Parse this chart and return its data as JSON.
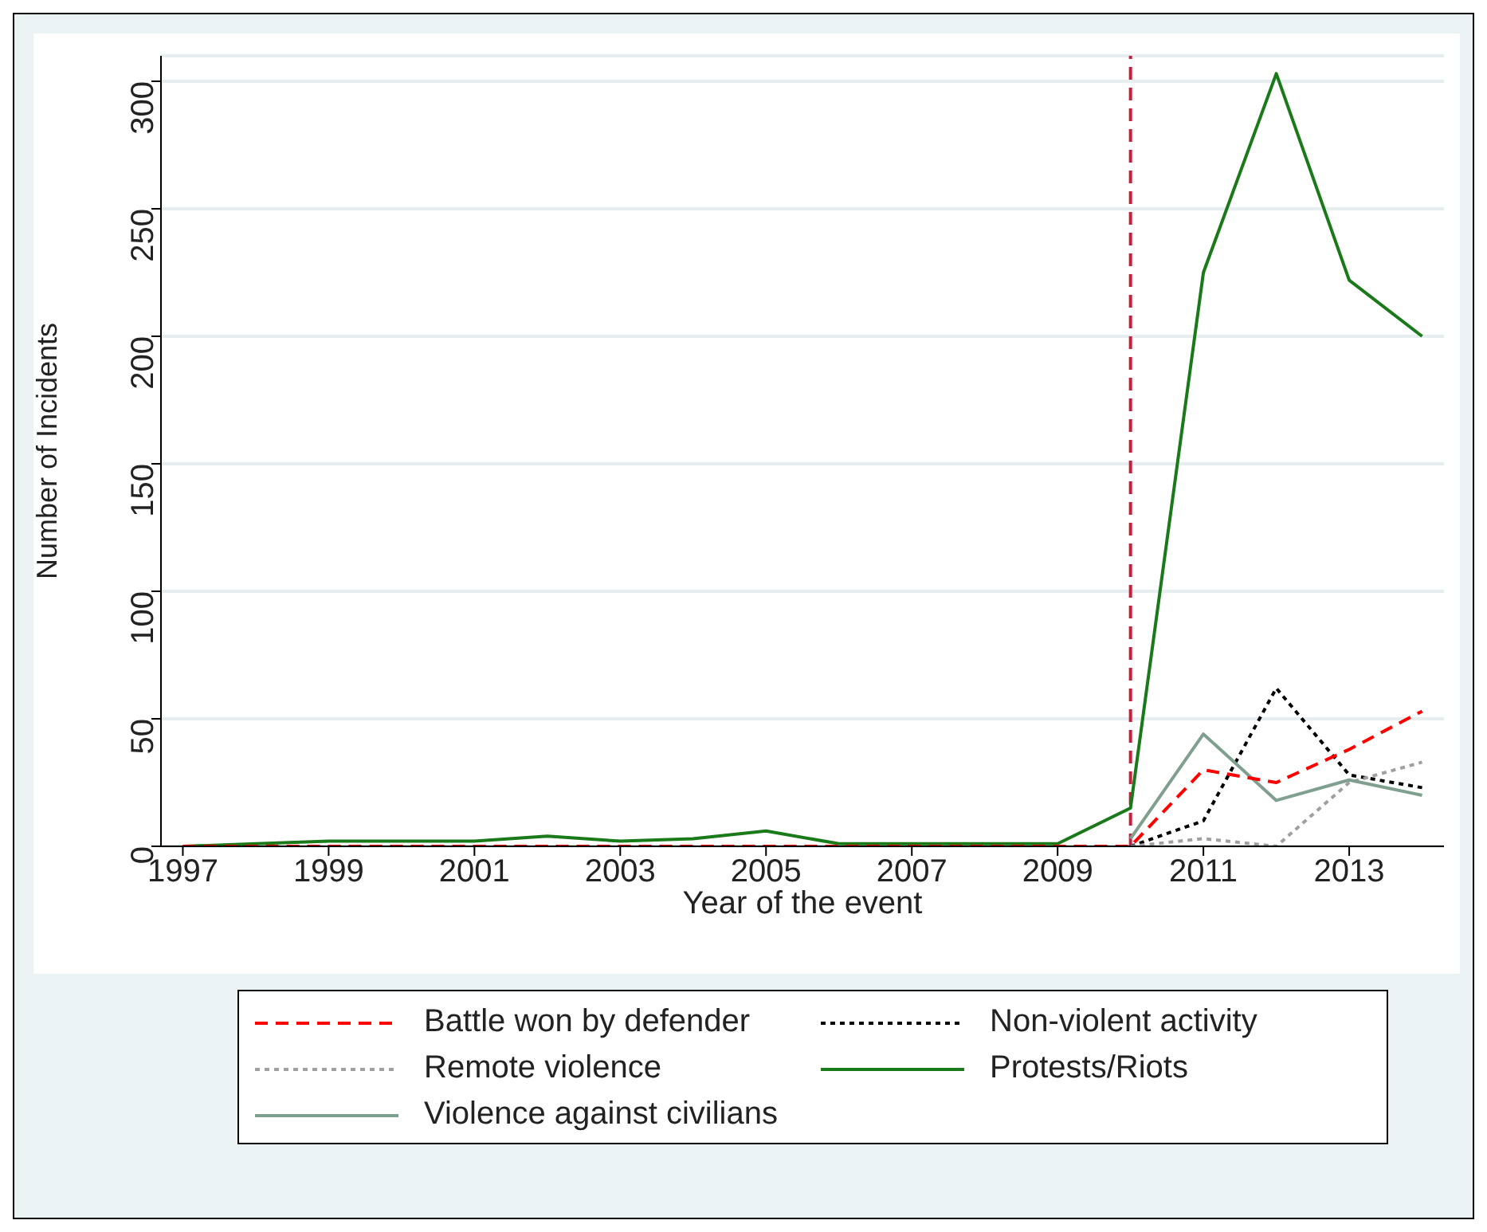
{
  "chart_data": {
    "type": "line",
    "xlabel": "Year of the event",
    "ylabel": "Number of Incidents",
    "x": [
      1997,
      1998,
      1999,
      2000,
      2001,
      2002,
      2003,
      2004,
      2005,
      2006,
      2007,
      2008,
      2009,
      2010,
      2011,
      2012,
      2013,
      2014
    ],
    "series": [
      {
        "name": "Battle won by defender",
        "color": "#ff0000",
        "line_style": "dashed",
        "values": [
          0,
          0,
          0,
          0,
          0,
          0,
          0,
          0,
          0,
          0,
          0,
          0,
          0,
          0,
          30,
          25,
          38,
          53
        ]
      },
      {
        "name": "Non-violent activity",
        "color": "#000000",
        "line_style": "dotted",
        "values": [
          null,
          null,
          null,
          null,
          null,
          null,
          null,
          null,
          null,
          null,
          null,
          null,
          null,
          0,
          10,
          62,
          28,
          23
        ]
      },
      {
        "name": "Remote violence",
        "color": "#a0a0a0",
        "line_style": "dotted",
        "values": [
          null,
          null,
          null,
          null,
          null,
          null,
          null,
          null,
          null,
          null,
          null,
          null,
          null,
          0,
          3,
          0,
          25,
          33
        ]
      },
      {
        "name": "Protests/Riots",
        "color": "#1a7a1a",
        "line_style": "solid",
        "values": [
          0,
          1,
          2,
          2,
          2,
          4,
          2,
          3,
          6,
          1,
          1,
          1,
          1,
          15,
          225,
          303,
          222,
          200
        ]
      },
      {
        "name": "Violence against civilians",
        "color": "#7f9f8f",
        "line_style": "solid",
        "values": [
          null,
          null,
          null,
          null,
          null,
          null,
          null,
          null,
          null,
          null,
          null,
          null,
          null,
          3,
          44,
          18,
          26,
          20
        ]
      }
    ],
    "xlim": [
      1996.7,
      2014.3
    ],
    "xticks": [
      1997,
      1999,
      2001,
      2003,
      2005,
      2007,
      2009,
      2011,
      2013
    ],
    "ylim": [
      0,
      310
    ],
    "yticks": [
      0,
      50,
      100,
      150,
      200,
      250,
      300
    ],
    "grid": "y",
    "legend": "bottom",
    "marker": "none",
    "ref_lines": [
      {
        "axis": "x",
        "value": 2010,
        "color": "#c8203c",
        "line_style": "dashed"
      }
    ]
  }
}
